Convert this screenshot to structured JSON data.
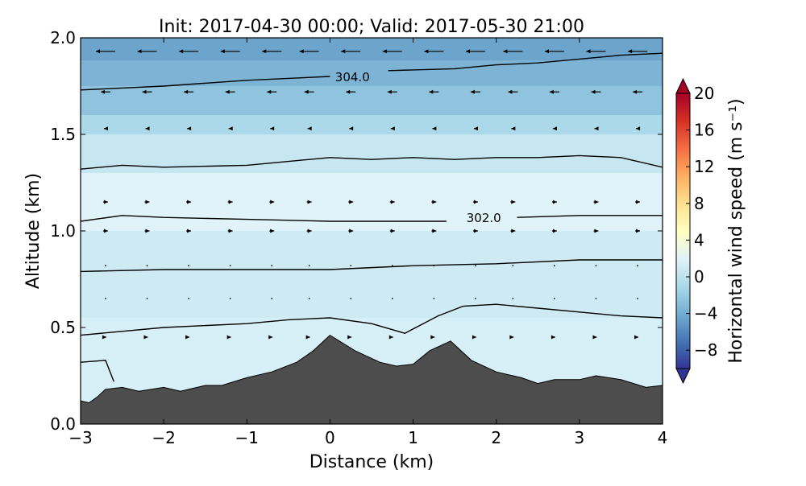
{
  "chart_data": {
    "type": "cross-section-contour",
    "title": "Init: 2017-04-30 00:00; Valid: 2017-05-30 21:00",
    "xlabel": "Distance (km)",
    "ylabel": "Altitude (km)",
    "xlim": [
      -3,
      4
    ],
    "ylim": [
      0.0,
      2.0
    ],
    "x_ticks": [
      -3,
      -2,
      -1,
      0,
      1,
      2,
      3,
      4
    ],
    "x_tick_labels": [
      "−3",
      "−2",
      "−1",
      "0",
      "1",
      "2",
      "3",
      "4"
    ],
    "y_ticks": [
      0.0,
      0.5,
      1.0,
      1.5,
      2.0
    ],
    "y_tick_labels": [
      "0.0",
      "0.5",
      "1.0",
      "1.5",
      "2.0"
    ],
    "colorbar": {
      "label": "Horizontal wind speed (m s⁻¹)",
      "range": [
        -10,
        20
      ],
      "ticks": [
        -8,
        -4,
        0,
        4,
        8,
        12,
        16,
        20
      ],
      "tick_labels": [
        "−8",
        "−4",
        "0",
        "4",
        "8",
        "12",
        "16",
        "20"
      ],
      "colors": [
        "#313695",
        "#4575b4",
        "#74add1",
        "#abd9e9",
        "#e0f3f8",
        "#ffffbf",
        "#fee090",
        "#fdae61",
        "#f46d43",
        "#d73027",
        "#a50026"
      ]
    },
    "background_bands": [
      {
        "z": [
          0.0,
          0.55
        ],
        "speed": 1.5
      },
      {
        "z": [
          0.55,
          1.0
        ],
        "speed": 1.0
      },
      {
        "z": [
          1.0,
          1.3
        ],
        "speed": 2.0
      },
      {
        "z": [
          1.3,
          1.5
        ],
        "speed": 0.5
      },
      {
        "z": [
          1.5,
          1.6
        ],
        "speed": -1.0
      },
      {
        "z": [
          1.6,
          1.75
        ],
        "speed": -2.5
      },
      {
        "z": [
          1.75,
          1.88
        ],
        "speed": -3.5
      },
      {
        "z": [
          1.88,
          2.0
        ],
        "speed": -4.5
      }
    ],
    "terrain": {
      "x": [
        -3.0,
        -2.9,
        -2.8,
        -2.7,
        -2.5,
        -2.3,
        -2.0,
        -1.8,
        -1.5,
        -1.3,
        -1.0,
        -0.7,
        -0.4,
        -0.2,
        0.0,
        0.3,
        0.6,
        0.8,
        1.0,
        1.2,
        1.45,
        1.7,
        2.0,
        2.3,
        2.5,
        2.7,
        3.0,
        3.2,
        3.5,
        3.8,
        4.0
      ],
      "z": [
        0.12,
        0.11,
        0.14,
        0.18,
        0.19,
        0.17,
        0.19,
        0.17,
        0.2,
        0.2,
        0.24,
        0.27,
        0.32,
        0.38,
        0.46,
        0.38,
        0.32,
        0.3,
        0.31,
        0.38,
        0.43,
        0.33,
        0.27,
        0.24,
        0.21,
        0.23,
        0.23,
        0.25,
        0.23,
        0.19,
        0.2
      ]
    },
    "contours": [
      {
        "x": [
          -3.0,
          -2.7,
          -2.6
        ],
        "z": [
          0.32,
          0.33,
          0.22
        ]
      },
      {
        "x": [
          -3.0,
          -2.0,
          -1.0,
          -0.5,
          0.0,
          0.5,
          0.9,
          1.3,
          1.6,
          2.0,
          2.5,
          3.0,
          3.5,
          4.0
        ],
        "z": [
          0.46,
          0.5,
          0.52,
          0.54,
          0.55,
          0.52,
          0.47,
          0.56,
          0.61,
          0.62,
          0.6,
          0.58,
          0.56,
          0.55
        ]
      },
      {
        "x": [
          -3.0,
          -2.0,
          -1.0,
          0.0,
          1.0,
          2.0,
          3.0,
          4.0
        ],
        "z": [
          0.79,
          0.8,
          0.8,
          0.8,
          0.82,
          0.83,
          0.85,
          0.85
        ]
      },
      {
        "x": [
          -3.0,
          -2.5,
          -2.0,
          -1.0,
          0.0,
          0.5,
          1.0,
          1.4
        ],
        "z": [
          1.05,
          1.08,
          1.07,
          1.06,
          1.05,
          1.05,
          1.05,
          1.05
        ]
      },
      {
        "x": [
          2.25,
          3.0,
          4.0
        ],
        "z": [
          1.07,
          1.08,
          1.08
        ]
      },
      {
        "x": [
          -3.0,
          -2.5,
          -2.0,
          -1.0,
          0.0,
          0.5,
          1.0,
          1.5,
          2.0,
          2.5,
          3.0,
          3.5,
          4.0
        ],
        "z": [
          1.32,
          1.34,
          1.33,
          1.34,
          1.38,
          1.37,
          1.38,
          1.37,
          1.38,
          1.38,
          1.39,
          1.38,
          1.33
        ]
      },
      {
        "x": [
          -3.0,
          -2.0,
          -1.0,
          -0.5,
          0.0
        ],
        "z": [
          1.73,
          1.75,
          1.78,
          1.79,
          1.8
        ]
      },
      {
        "x": [
          0.7,
          1.5,
          2.0,
          2.5,
          3.0,
          3.5,
          4.0
        ],
        "z": [
          1.83,
          1.84,
          1.86,
          1.87,
          1.89,
          1.91,
          1.92
        ]
      }
    ],
    "contour_labels": [
      {
        "text": "304.0",
        "x": 0.27,
        "z": 1.8
      },
      {
        "text": "302.0",
        "x": 1.85,
        "z": 1.07
      }
    ],
    "vector_columns_x": [
      -2.7,
      -2.2,
      -1.7,
      -1.2,
      -0.7,
      -0.25,
      0.25,
      0.75,
      1.25,
      1.75,
      2.2,
      2.7,
      3.2,
      3.7
    ],
    "vectors": [
      {
        "z": 1.93,
        "u": -6
      },
      {
        "z": 1.72,
        "u": -3
      },
      {
        "z": 1.53,
        "u": -1
      },
      {
        "z": 1.15,
        "u": 1.5
      },
      {
        "z": 1.0,
        "u": 1.5
      },
      {
        "z": 0.82,
        "u": 0.3
      },
      {
        "z": 0.65,
        "u": 0.3
      },
      {
        "z": 0.45,
        "u": 0.5
      }
    ]
  }
}
